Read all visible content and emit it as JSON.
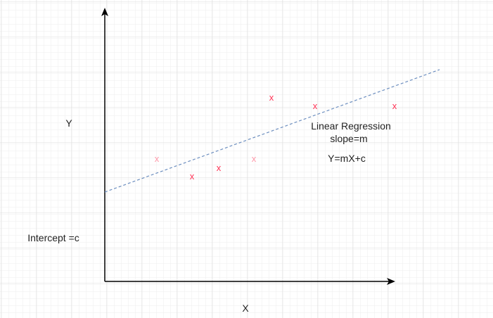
{
  "labels": {
    "y_axis": "Y",
    "x_axis": "X",
    "intercept": "Intercept =c",
    "title_line1": "Linear Regression",
    "title_line2": "slope=m",
    "equation": "Y=mX+c"
  },
  "marker_symbol": "x",
  "colors": {
    "grid": "#e6e6e6",
    "axis": "#000000",
    "regression_line": "#6c8ebf",
    "marker": "#ff3355",
    "marker_light": "#ff99aa"
  }
}
